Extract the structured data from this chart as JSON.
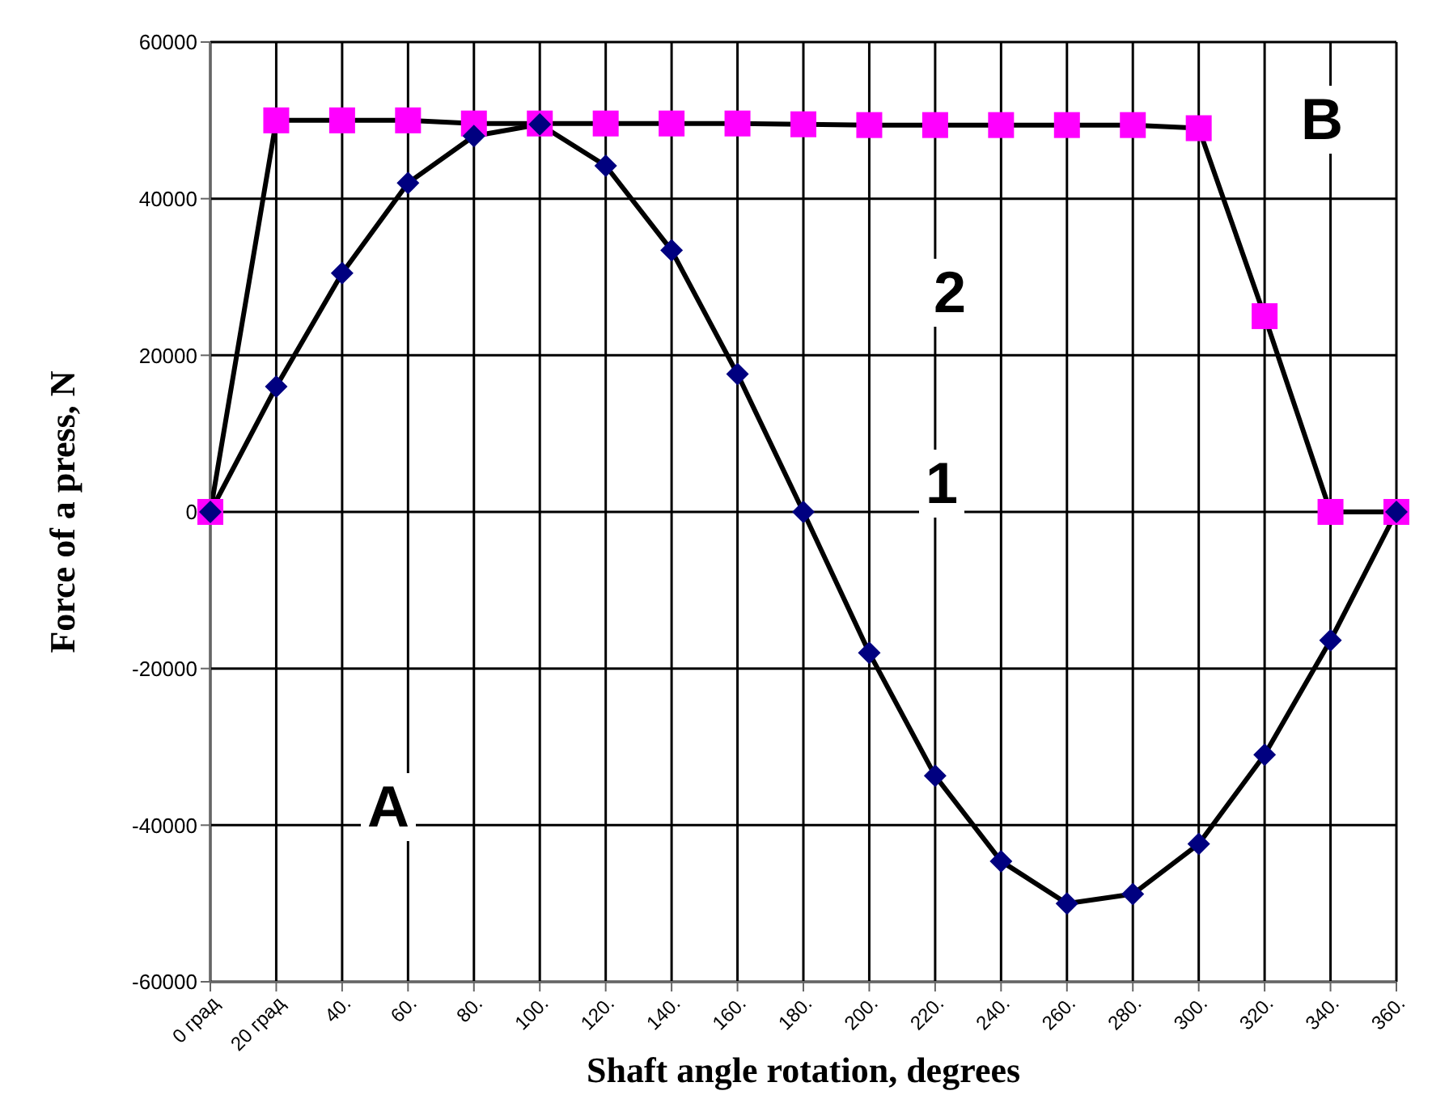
{
  "chart_data": {
    "type": "line",
    "xlabel": "Shaft angle rotation, degrees",
    "ylabel": "Force of a press, N",
    "categories": [
      "0 град",
      "20 град",
      "40.",
      "60.",
      "80.",
      "100.",
      "120.",
      "140.",
      "160.",
      "180.",
      "200.",
      "220.",
      "240.",
      "260.",
      "280.",
      "300.",
      "320.",
      "340.",
      "360."
    ],
    "series": [
      {
        "color": "#000080",
        "marker": "diamond",
        "values": [
          0,
          16000,
          30500,
          42000,
          48000,
          49500,
          44200,
          33400,
          17600,
          0,
          -18000,
          -33700,
          -44600,
          -50000,
          -48800,
          -42400,
          -31000,
          -16400,
          0
        ]
      },
      {
        "color": "#ff00ff",
        "marker": "square",
        "values": [
          0,
          50000,
          50000,
          50000,
          49600,
          49600,
          49600,
          49600,
          49600,
          49500,
          49400,
          49400,
          49400,
          49400,
          49400,
          49000,
          25000,
          0,
          0
        ]
      }
    ],
    "ylim": [
      -60000,
      60000
    ],
    "yticks": [
      -60000,
      -40000,
      -20000,
      0,
      20000,
      40000,
      60000
    ],
    "grid": true,
    "legend": false,
    "annotations": [
      "1",
      "2",
      "A",
      "B"
    ]
  }
}
